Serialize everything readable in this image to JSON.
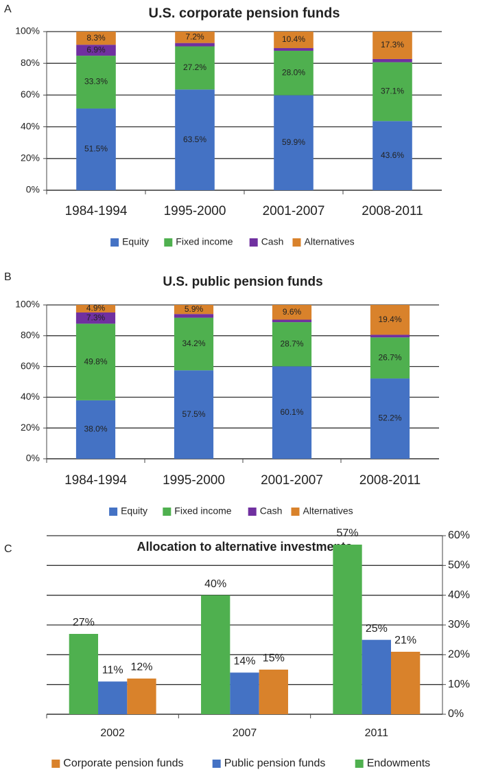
{
  "chart_data": [
    {
      "type": "stacked_bar",
      "panel": "A",
      "title": "U.S. corporate pension funds",
      "categories": [
        "1984-1994",
        "1995-2000",
        "2001-2007",
        "2008-2011"
      ],
      "series": [
        {
          "name": "Equity",
          "color": "#4472c4",
          "values": [
            51.5,
            63.5,
            59.9,
            43.6
          ],
          "value_labels": [
            "51.5%",
            "63.5%",
            "59.9%",
            "43.6%"
          ]
        },
        {
          "name": "Fixed income",
          "color": "#4fb04f",
          "values": [
            33.3,
            27.2,
            28.0,
            37.1
          ],
          "value_labels": [
            "33.3%",
            "27.2%",
            "28.0%",
            "37.1%"
          ]
        },
        {
          "name": "Cash",
          "color": "#7030a0",
          "values": [
            6.9,
            2.1,
            1.7,
            2.0
          ],
          "value_labels": [
            "6.9%",
            null,
            null,
            null
          ]
        },
        {
          "name": "Alternatives",
          "color": "#d9822b",
          "values": [
            8.3,
            7.2,
            10.4,
            17.3
          ],
          "value_labels": [
            "8.3%",
            "7.2%",
            "10.4%",
            "17.3%"
          ]
        }
      ],
      "ylim": [
        0,
        100
      ],
      "yticks": [
        {
          "value": 0,
          "label": "0%"
        },
        {
          "value": 20,
          "label": "20%"
        },
        {
          "value": 40,
          "label": "40%"
        },
        {
          "value": 60,
          "label": "60%"
        },
        {
          "value": 80,
          "label": "80%"
        },
        {
          "value": 100,
          "label": "100%"
        }
      ],
      "grid": true,
      "y_axis_side": "left",
      "legend": "bottom"
    },
    {
      "type": "stacked_bar",
      "panel": "B",
      "title": "U.S. public pension funds",
      "categories": [
        "1984-1994",
        "1995-2000",
        "2001-2007",
        "2008-2011"
      ],
      "series": [
        {
          "name": "Equity",
          "color": "#4472c4",
          "values": [
            38.0,
            57.5,
            60.1,
            52.2
          ],
          "value_labels": [
            "38.0%",
            "57.5%",
            "60.1%",
            "52.2%"
          ]
        },
        {
          "name": "Fixed income",
          "color": "#4fb04f",
          "values": [
            49.8,
            34.2,
            28.7,
            26.7
          ],
          "value_labels": [
            "49.8%",
            "34.2%",
            "28.7%",
            "26.7%"
          ]
        },
        {
          "name": "Cash",
          "color": "#7030a0",
          "values": [
            7.3,
            2.4,
            1.6,
            1.7
          ],
          "value_labels": [
            "7.3%",
            null,
            null,
            null
          ]
        },
        {
          "name": "Alternatives",
          "color": "#d9822b",
          "values": [
            4.9,
            5.9,
            9.6,
            19.4
          ],
          "value_labels": [
            "4.9%",
            "5.9%",
            "9.6%",
            "19.4%"
          ]
        }
      ],
      "ylim": [
        0,
        100
      ],
      "yticks": [
        {
          "value": 0,
          "label": "0%"
        },
        {
          "value": 20,
          "label": "20%"
        },
        {
          "value": 40,
          "label": "40%"
        },
        {
          "value": 60,
          "label": "60%"
        },
        {
          "value": 80,
          "label": "80%"
        },
        {
          "value": 100,
          "label": "100%"
        }
      ],
      "grid": true,
      "y_axis_side": "left",
      "legend": "bottom"
    },
    {
      "type": "grouped_bar",
      "panel": "C",
      "title": "Allocation to alternative investments",
      "categories": [
        "2002",
        "2007",
        "2011"
      ],
      "series": [
        {
          "name": "Corporate pension funds",
          "color": "#d9822b",
          "values": [
            12,
            15,
            21
          ],
          "value_labels": [
            "12%",
            "15%",
            "21%"
          ]
        },
        {
          "name": "Public pension funds",
          "color": "#4472c4",
          "values": [
            11,
            14,
            25
          ],
          "value_labels": [
            "11%",
            "14%",
            "25%"
          ]
        },
        {
          "name": "Endowments",
          "color": "#4fb04f",
          "values": [
            27,
            40,
            57
          ],
          "value_labels": [
            "27%",
            "40%",
            "57%"
          ]
        }
      ],
      "ylim": [
        0,
        60
      ],
      "yticks": [
        {
          "value": 0,
          "label": "0%"
        },
        {
          "value": 10,
          "label": "10%"
        },
        {
          "value": 20,
          "label": "20%"
        },
        {
          "value": 30,
          "label": "30%"
        },
        {
          "value": 40,
          "label": "40%"
        },
        {
          "value": 50,
          "label": "50%"
        },
        {
          "value": 60,
          "label": "60%"
        }
      ],
      "grid": true,
      "y_axis_side": "right",
      "legend": "bottom"
    }
  ]
}
